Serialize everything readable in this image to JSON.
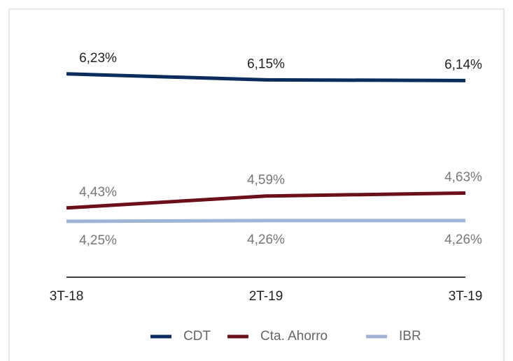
{
  "chart_data": {
    "type": "line",
    "categories": [
      "3T-18",
      "2T-19",
      "3T-19"
    ],
    "series": [
      {
        "name": "CDT",
        "color": "#0d2c5e",
        "values": [
          6.23,
          6.15,
          6.14
        ],
        "value_labels": [
          "6,23%",
          "6,15%",
          "6,14%"
        ]
      },
      {
        "name": "Cta. Ahorro",
        "color": "#6b0f1a",
        "values": [
          4.43,
          4.59,
          4.63
        ],
        "value_labels": [
          "4,43%",
          "4,59%",
          "4,63%"
        ]
      },
      {
        "name": "IBR",
        "color": "#9fb4d4",
        "values": [
          4.25,
          4.26,
          4.26
        ],
        "value_labels": [
          "4,25%",
          "4,26%",
          "4,26%"
        ]
      }
    ],
    "ylim": [
      3.5,
      6.5
    ],
    "legend": "bottom"
  }
}
